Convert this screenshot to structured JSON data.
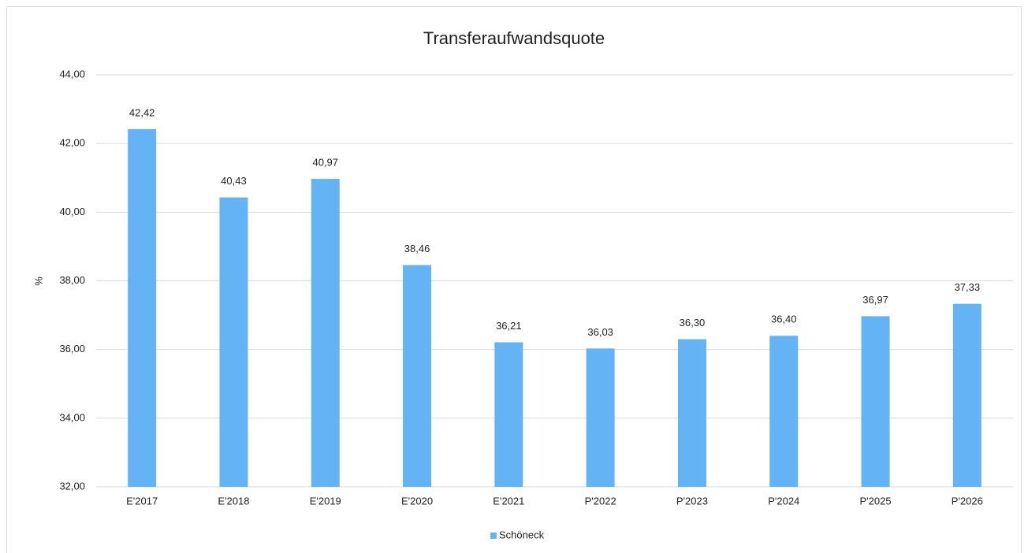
{
  "chart_data": {
    "type": "bar",
    "title": "Transferaufwandsquote",
    "y_label": "%",
    "categories": [
      "E'2017",
      "E'2018",
      "E'2019",
      "E'2020",
      "E'2021",
      "P'2022",
      "P'2023",
      "P'2024",
      "P'2025",
      "P'2026"
    ],
    "series": [
      {
        "name": "Schöneck",
        "color": "#63b3f5",
        "values": [
          42.42,
          40.43,
          40.97,
          38.46,
          36.21,
          36.03,
          36.3,
          36.4,
          36.97,
          37.33
        ],
        "value_labels": [
          "42,42",
          "40,43",
          "40,97",
          "38,46",
          "36,21",
          "36,03",
          "36,30",
          "36,40",
          "36,97",
          "37,33"
        ]
      }
    ],
    "ylim": [
      32,
      44
    ],
    "yticks": [
      {
        "value": 32,
        "label": "32,00"
      },
      {
        "value": 34,
        "label": "34,00"
      },
      {
        "value": 36,
        "label": "36,00"
      },
      {
        "value": 38,
        "label": "38,00"
      },
      {
        "value": 40,
        "label": "40,00"
      },
      {
        "value": 42,
        "label": "42,00"
      },
      {
        "value": 44,
        "label": "44,00"
      }
    ],
    "grid": true,
    "legend": "bottom"
  }
}
